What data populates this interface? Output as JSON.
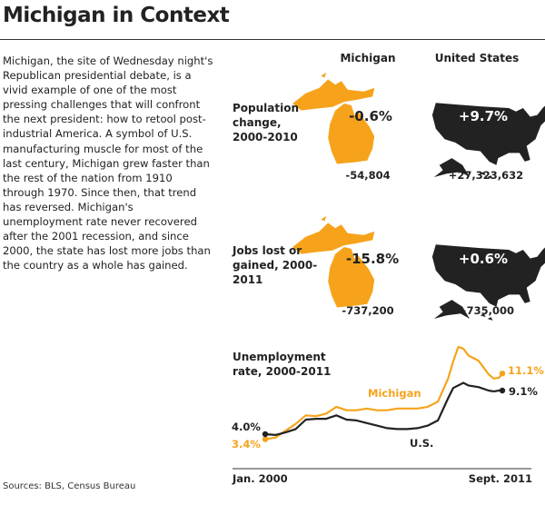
{
  "title": "Michigan in Context",
  "body_text": "Michigan, the site of Wednesday night's Republican presidential debate, is a vivid example of one of the most pressing challenges that will confront the next president: how to retool post-industrial America. A symbol of U.S. manufacturing muscle for most of the last century, Michigan grew faster than the rest of the nation from 1910 through 1970. Since then, that trend has reversed. Michigan's unemployment rate never recovered after the 2001 recession, and since 2000, the state has lost more jobs than the country as a whole has gained.",
  "sources": "Sources: BLS, Census Bureau",
  "columns": [
    "Michigan",
    "United States"
  ],
  "colors": {
    "michigan": "#f6a31b",
    "us": "#222222"
  },
  "rows": [
    {
      "label": "Population change, 2000-2010",
      "michigan_pct": "-0.6%",
      "us_pct": "+9.7%",
      "michigan_num": "-54,804",
      "us_num": "+27,323,632"
    },
    {
      "label": "Jobs lost or gained, 2000-2011",
      "michigan_pct": "-15.8%",
      "us_pct": "+0.6%",
      "michigan_num": "-737,200",
      "us_num": "+735,000"
    }
  ],
  "chart_data": {
    "type": "line",
    "title": "Unemployment rate, 2000-2011",
    "x_start_label": "Jan. 2000",
    "x_end_label": "Sept. 2011",
    "x": [
      2000.0,
      2000.5,
      2001.0,
      2001.5,
      2002.0,
      2002.5,
      2003.0,
      2003.5,
      2004.0,
      2004.5,
      2005.0,
      2005.5,
      2006.0,
      2006.5,
      2007.0,
      2007.5,
      2008.0,
      2008.5,
      2009.0,
      2009.25,
      2009.5,
      2009.75,
      2010.0,
      2010.5,
      2011.0,
      2011.25,
      2011.5,
      2011.67
    ],
    "series": [
      {
        "name": "Michigan",
        "start_label": "3.4%",
        "end_label": "11.1%",
        "values": [
          3.4,
          3.6,
          4.4,
          5.2,
          6.2,
          6.1,
          6.4,
          7.2,
          6.8,
          6.8,
          7.0,
          6.8,
          6.8,
          7.0,
          7.0,
          7.0,
          7.2,
          7.8,
          10.5,
          12.5,
          14.2,
          14.0,
          13.2,
          12.6,
          11.0,
          10.5,
          10.6,
          11.1
        ]
      },
      {
        "name": "U.S.",
        "start_label": "4.0%",
        "end_label": "9.1%",
        "values": [
          4.0,
          3.9,
          4.2,
          4.6,
          5.7,
          5.8,
          5.8,
          6.2,
          5.7,
          5.6,
          5.3,
          5.0,
          4.7,
          4.6,
          4.6,
          4.7,
          5.0,
          5.6,
          8.2,
          9.4,
          9.7,
          10.0,
          9.7,
          9.5,
          9.1,
          9.0,
          9.1,
          9.1
        ]
      }
    ]
  }
}
